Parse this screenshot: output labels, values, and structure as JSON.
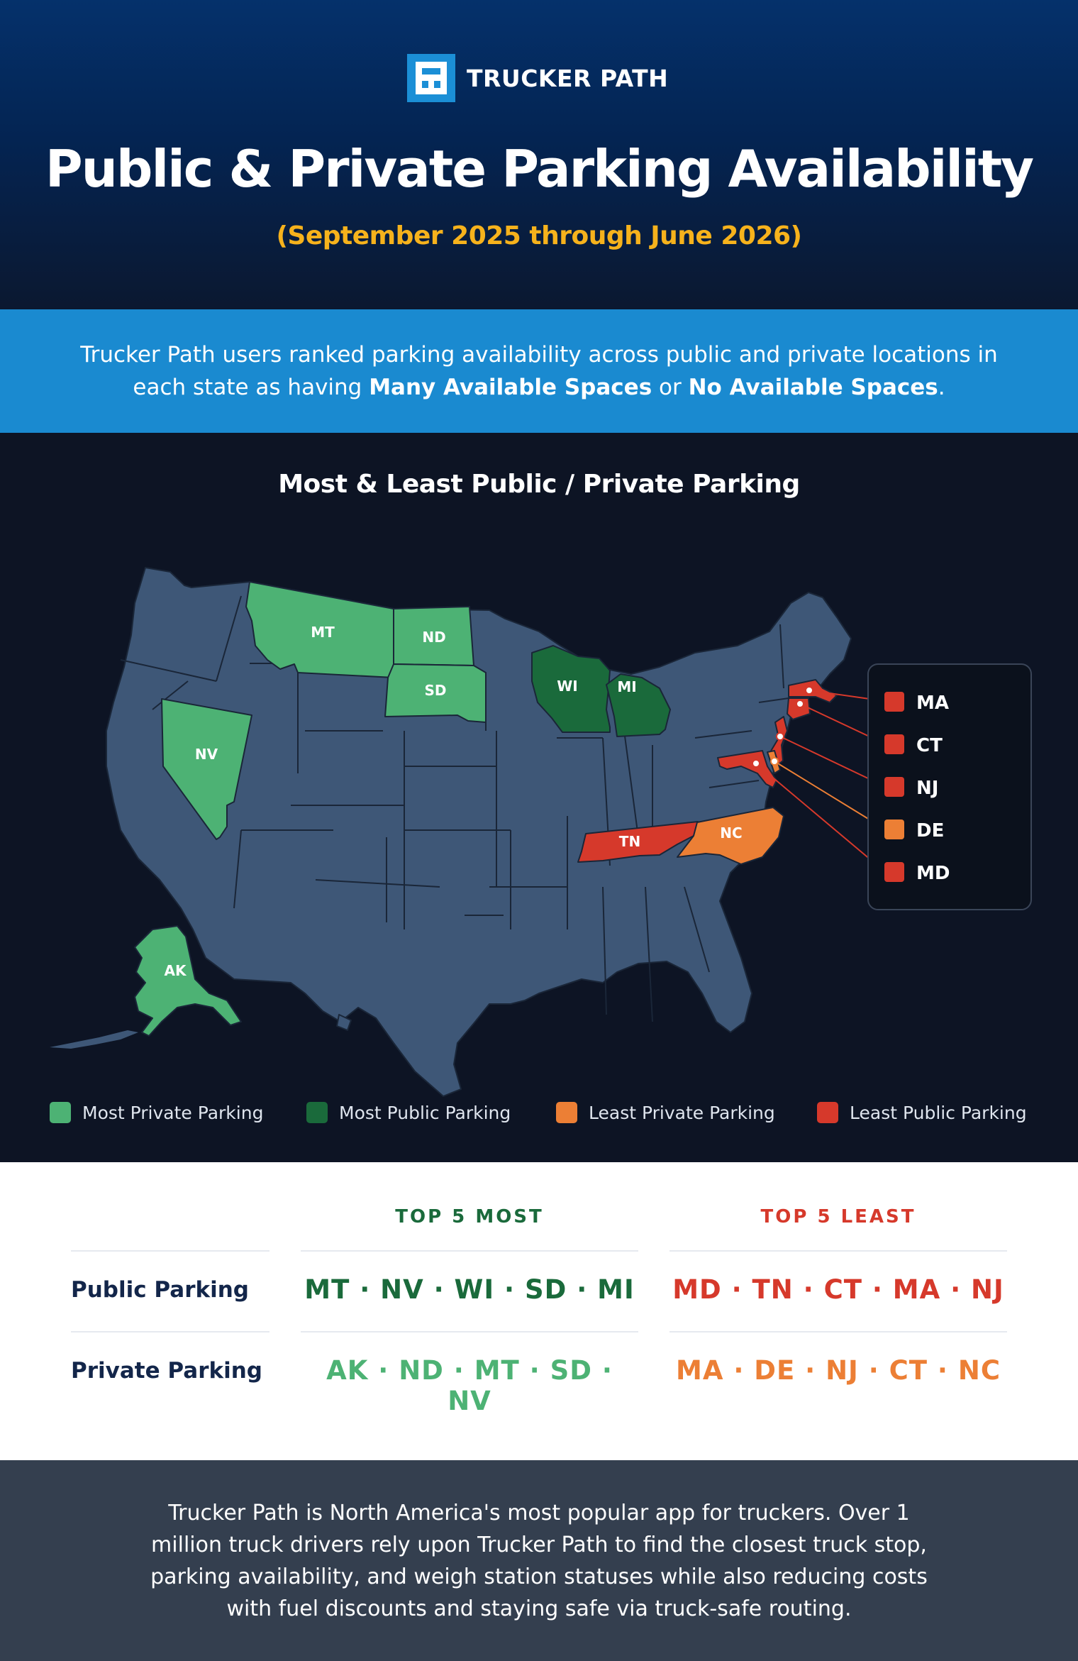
{
  "brand": {
    "name": "TRUCKER PATH",
    "logo_icon": "trucker-path-logo-icon",
    "color": "#1b8fd6"
  },
  "header": {
    "title": "Public & Private Parking Availability",
    "subtitle": "(September 2025 through June 2026)"
  },
  "intro": {
    "text_a": "Trucker Path users ranked parking availability across public and private locations in each state as having ",
    "bold_a": "Many Available Spaces",
    "text_b": " or ",
    "bold_b": "No Available Spaces",
    "text_c": "."
  },
  "map": {
    "title": "Most & Least Public / Private Parking",
    "colors": {
      "most_private": "#4db274",
      "most_public": "#1a6a3b",
      "least_private": "#ec7f35",
      "least_public": "#d6392b",
      "neutral": "#3e5777",
      "border": "#1a2638"
    },
    "state_labels": {
      "MT": "MT",
      "ND": "ND",
      "SD": "SD",
      "NV": "NV",
      "WI": "WI",
      "MI": "MI",
      "TN": "TN",
      "NC": "NC",
      "AK": "AK"
    },
    "callouts": [
      {
        "label": "MA",
        "category": "least_public"
      },
      {
        "label": "CT",
        "category": "least_public"
      },
      {
        "label": "NJ",
        "category": "least_public"
      },
      {
        "label": "DE",
        "category": "least_private"
      },
      {
        "label": "MD",
        "category": "least_public"
      }
    ]
  },
  "legend": [
    {
      "label": "Most Private Parking",
      "color": "#4db274"
    },
    {
      "label": "Most Public Parking",
      "color": "#1a6a3b"
    },
    {
      "label": "Least Private Parking",
      "color": "#ec7f35"
    },
    {
      "label": "Least Public Parking",
      "color": "#d6392b"
    }
  ],
  "table": {
    "col_most": "TOP 5 MOST",
    "col_least": "TOP 5 LEAST",
    "rows": [
      {
        "label": "Public Parking",
        "most": "MT · NV · WI · SD · MI",
        "least": "MD · TN · CT · MA · NJ",
        "most_color": "#1a6a3b",
        "least_color": "#d6392b"
      },
      {
        "label": "Private Parking",
        "most": "AK · ND · MT · SD · NV",
        "least": "MA · DE · NJ · CT · NC",
        "most_color": "#4db274",
        "least_color": "#ec7f35"
      }
    ]
  },
  "footer": {
    "text": "Trucker Path is North America's most popular app for truckers. Over 1 million truck drivers rely upon Trucker Path to find the closest truck stop, parking availability, and weigh station statuses while also reducing costs with fuel discounts and staying safe via truck-safe routing."
  }
}
